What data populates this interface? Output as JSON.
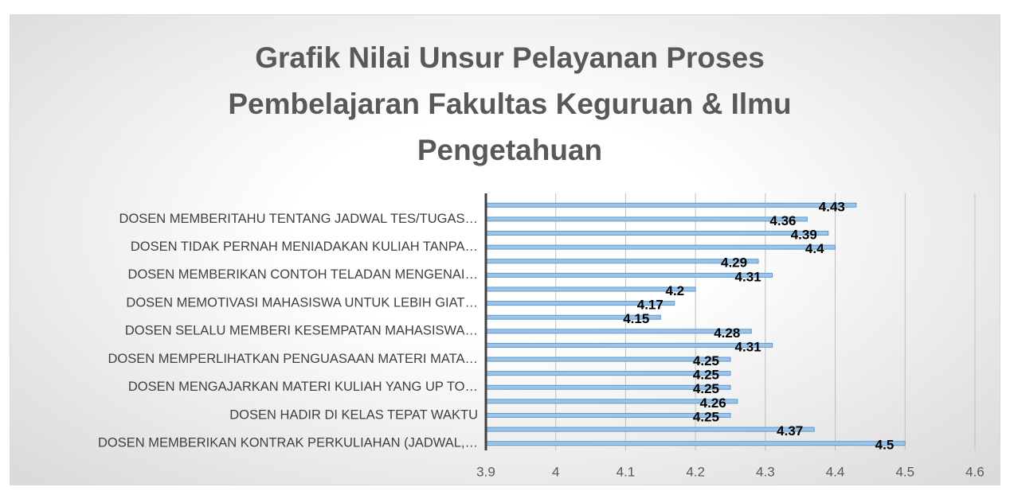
{
  "chart_data": {
    "type": "bar",
    "orientation": "horizontal",
    "title": "Grafik Nilai Unsur Pelayanan Proses Pembelajaran Fakultas Keguruan & Ilmu Pengetahuan",
    "categories": [
      null,
      "DOSEN MEMBERITAHU TENTANG JADWAL TES/TUGAS…",
      null,
      "DOSEN TIDAK PERNAH MENIADAKAN KULIAH TANPA…",
      null,
      "DOSEN MEMBERIKAN CONTOH TELADAN MENGENAI…",
      null,
      "DOSEN MEMOTIVASI MAHASISWA UNTUK LEBIH GIAT…",
      null,
      "DOSEN SELALU MEMBERI KESEMPATAN MAHASISWA…",
      null,
      "DOSEN MEMPERLIHATKAN PENGUASAAN MATERI MATA…",
      null,
      "DOSEN MENGAJARKAN MATERI KULIAH YANG UP TO…",
      null,
      "DOSEN HADIR DI KELAS TEPAT WAKTU",
      null,
      "DOSEN MEMBERIKAN KONTRAK PERKULIAHAN (JADWAL,…"
    ],
    "values": [
      4.43,
      4.36,
      4.39,
      4.4,
      4.29,
      4.31,
      4.2,
      4.17,
      4.15,
      4.28,
      4.31,
      4.25,
      4.25,
      4.25,
      4.26,
      4.25,
      4.37,
      4.5
    ],
    "color": "#9dc3e6",
    "xlim": [
      3.9,
      4.6
    ],
    "xticks": [
      3.9,
      4,
      4.1,
      4.2,
      4.3,
      4.4,
      4.5,
      4.6
    ],
    "grid": true
  }
}
